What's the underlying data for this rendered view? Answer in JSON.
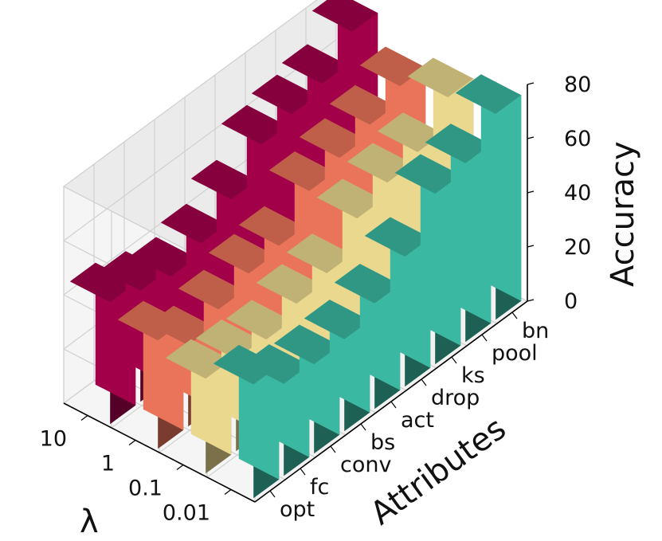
{
  "chart_data": {
    "type": "bar",
    "dimension": "3d",
    "categories": [
      "opt",
      "fc",
      "conv",
      "bs",
      "act",
      "drop",
      "ks",
      "pool",
      "bn"
    ],
    "x_ticks": [
      "opt",
      "fc",
      "conv",
      "bs",
      "act",
      "drop",
      "ks",
      "pool",
      "bn"
    ],
    "y_ticks": [
      "10",
      "1",
      "0.1",
      "0.01"
    ],
    "z_ticks": [
      "0",
      "20",
      "40",
      "60",
      "80"
    ],
    "xlabel": "Attributes",
    "ylabel": "λ",
    "zlabel": "Accuracy",
    "zlim": [
      0,
      80
    ],
    "grid": true,
    "series": [
      {
        "name": "10",
        "color": "#a3004a",
        "values": [
          45,
          41,
          38,
          42,
          50,
          62,
          65,
          68,
          79
        ]
      },
      {
        "name": "1",
        "color": "#e9745a",
        "values": [
          40,
          30,
          35,
          40,
          42,
          54,
          58,
          62,
          68
        ]
      },
      {
        "name": "0.1",
        "color": "#ead88f",
        "values": [
          35,
          34,
          33,
          38,
          41,
          53,
          58,
          61,
          73
        ]
      },
      {
        "name": "0.01",
        "color": "#3bb8a2",
        "values": [
          42,
          34,
          33,
          34,
          39,
          48,
          63,
          66,
          76
        ]
      }
    ]
  }
}
